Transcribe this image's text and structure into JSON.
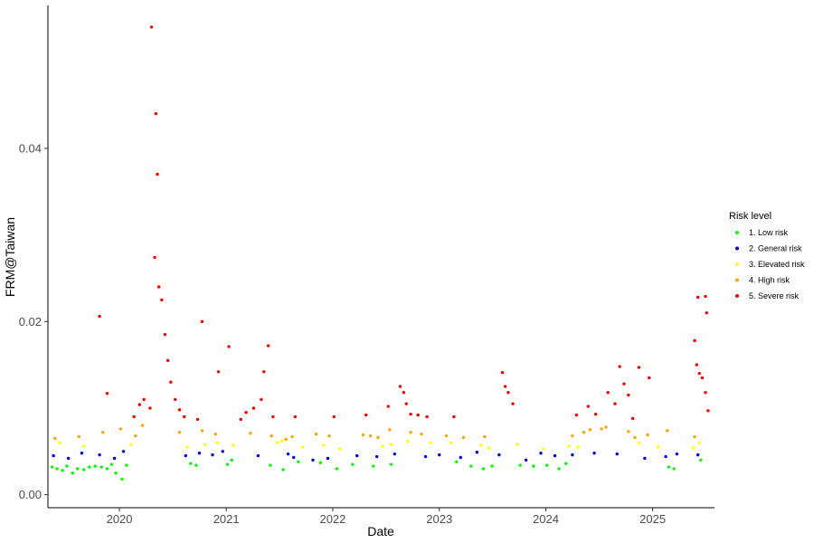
{
  "chart_data": {
    "type": "scatter",
    "xlabel": "Date",
    "ylabel": "FRM@Taiwan",
    "xlim": [
      "2019-05-01",
      "2025-08-01"
    ],
    "ylim": [
      -0.0015,
      0.0565
    ],
    "x_ticks": [
      "2020",
      "2021",
      "2022",
      "2023",
      "2024",
      "2025"
    ],
    "y_ticks": [
      "0.00",
      "0.02",
      "0.04"
    ],
    "grid": false,
    "legend": {
      "title": "Risk level",
      "placement": "right",
      "entries": [
        {
          "label": "1. Low risk",
          "color": "#00ff00"
        },
        {
          "label": "2. General risk",
          "color": "#0000ff"
        },
        {
          "label": "3. Elevated risk",
          "color": "#ffff00"
        },
        {
          "label": "4. High risk",
          "color": "#ffa500"
        },
        {
          "label": "5. Severe risk",
          "color": "#ff0000"
        }
      ]
    },
    "series": [
      {
        "name": "1. Low risk",
        "color": "#00ff00",
        "points": [
          [
            "2019-05-15",
            0.0032
          ],
          [
            "2019-06-01",
            0.003
          ],
          [
            "2019-06-20",
            0.0028
          ],
          [
            "2019-07-05",
            0.0033
          ],
          [
            "2019-07-25",
            0.0025
          ],
          [
            "2019-08-10",
            0.003
          ],
          [
            "2019-09-01",
            0.0029
          ],
          [
            "2019-09-20",
            0.0032
          ],
          [
            "2019-10-10",
            0.0033
          ],
          [
            "2019-11-01",
            0.0032
          ],
          [
            "2019-11-20",
            0.003
          ],
          [
            "2019-12-05",
            0.0035
          ],
          [
            "2019-12-20",
            0.0025
          ],
          [
            "2020-01-10",
            0.0018
          ],
          [
            "2020-01-25",
            0.0034
          ],
          [
            "2020-09-01",
            0.0036
          ],
          [
            "2020-09-20",
            0.0034
          ],
          [
            "2021-01-05",
            0.0035
          ],
          [
            "2021-01-20",
            0.004
          ],
          [
            "2021-06-01",
            0.0034
          ],
          [
            "2021-07-15",
            0.0029
          ],
          [
            "2021-09-05",
            0.0038
          ],
          [
            "2021-11-20",
            0.0037
          ],
          [
            "2022-01-15",
            0.003
          ],
          [
            "2022-03-10",
            0.0035
          ],
          [
            "2022-05-20",
            0.0033
          ],
          [
            "2022-07-20",
            0.0035
          ],
          [
            "2023-03-01",
            0.0038
          ],
          [
            "2023-04-20",
            0.0033
          ],
          [
            "2023-06-01",
            0.003
          ],
          [
            "2023-07-01",
            0.0033
          ],
          [
            "2023-10-05",
            0.0034
          ],
          [
            "2023-11-20",
            0.0033
          ],
          [
            "2024-01-05",
            0.0034
          ],
          [
            "2024-02-15",
            0.003
          ],
          [
            "2024-03-10",
            0.0036
          ],
          [
            "2025-02-25",
            0.0032
          ],
          [
            "2025-03-15",
            0.003
          ],
          [
            "2025-06-15",
            0.004
          ]
        ]
      },
      {
        "name": "2. General risk",
        "color": "#0000ff",
        "points": [
          [
            "2019-05-20",
            0.0045
          ],
          [
            "2019-07-10",
            0.0042
          ],
          [
            "2019-08-25",
            0.0048
          ],
          [
            "2019-10-25",
            0.0046
          ],
          [
            "2019-12-15",
            0.0042
          ],
          [
            "2020-01-15",
            0.005
          ],
          [
            "2020-08-15",
            0.0045
          ],
          [
            "2020-10-01",
            0.0048
          ],
          [
            "2020-11-15",
            0.0046
          ],
          [
            "2020-12-20",
            0.005
          ],
          [
            "2021-04-20",
            0.0045
          ],
          [
            "2021-08-01",
            0.0047
          ],
          [
            "2021-08-20",
            0.0043
          ],
          [
            "2021-10-25",
            0.004
          ],
          [
            "2021-12-15",
            0.0042
          ],
          [
            "2022-03-25",
            0.0045
          ],
          [
            "2022-06-01",
            0.0044
          ],
          [
            "2022-08-01",
            0.0047
          ],
          [
            "2022-11-15",
            0.0044
          ],
          [
            "2023-01-01",
            0.0046
          ],
          [
            "2023-03-15",
            0.0043
          ],
          [
            "2023-05-10",
            0.0049
          ],
          [
            "2023-07-25",
            0.0046
          ],
          [
            "2023-10-25",
            0.004
          ],
          [
            "2023-12-15",
            0.0048
          ],
          [
            "2024-02-01",
            0.0045
          ],
          [
            "2024-04-01",
            0.0046
          ],
          [
            "2024-06-15",
            0.0048
          ],
          [
            "2024-09-01",
            0.0047
          ],
          [
            "2024-12-05",
            0.0042
          ],
          [
            "2025-02-15",
            0.0044
          ],
          [
            "2025-03-25",
            0.0047
          ],
          [
            "2025-06-05",
            0.0046
          ]
        ]
      },
      {
        "name": "3. Elevated risk",
        "color": "#ffff00",
        "points": [
          [
            "2019-06-10",
            0.006
          ],
          [
            "2019-09-01",
            0.0056
          ],
          [
            "2020-02-10",
            0.0058
          ],
          [
            "2020-08-20",
            0.0055
          ],
          [
            "2020-10-20",
            0.0058
          ],
          [
            "2020-12-01",
            0.006
          ],
          [
            "2021-01-25",
            0.0057
          ],
          [
            "2021-06-25",
            0.006
          ],
          [
            "2021-07-10",
            0.0062
          ],
          [
            "2021-09-20",
            0.0055
          ],
          [
            "2021-12-01",
            0.0057
          ],
          [
            "2022-01-25",
            0.0053
          ],
          [
            "2022-06-20",
            0.0056
          ],
          [
            "2022-07-20",
            0.0058
          ],
          [
            "2022-09-15",
            0.0062
          ],
          [
            "2022-12-01",
            0.006
          ],
          [
            "2023-02-10",
            0.006
          ],
          [
            "2023-05-25",
            0.0057
          ],
          [
            "2023-06-20",
            0.0054
          ],
          [
            "2023-09-25",
            0.0058
          ],
          [
            "2023-12-25",
            0.0053
          ],
          [
            "2024-03-20",
            0.0056
          ],
          [
            "2024-04-20",
            0.0055
          ],
          [
            "2024-11-15",
            0.006
          ],
          [
            "2025-01-20",
            0.0055
          ],
          [
            "2025-05-20",
            0.0054
          ],
          [
            "2025-06-10",
            0.006
          ]
        ]
      },
      {
        "name": "4. High risk",
        "color": "#ffa500",
        "points": [
          [
            "2019-05-25",
            0.0065
          ],
          [
            "2019-08-15",
            0.0067
          ],
          [
            "2019-11-05",
            0.0072
          ],
          [
            "2020-01-05",
            0.0076
          ],
          [
            "2020-02-25",
            0.0068
          ],
          [
            "2020-03-20",
            0.008
          ],
          [
            "2020-07-25",
            0.0072
          ],
          [
            "2020-10-10",
            0.0074
          ],
          [
            "2020-11-25",
            0.007
          ],
          [
            "2021-03-25",
            0.0071
          ],
          [
            "2021-06-05",
            0.0068
          ],
          [
            "2021-07-25",
            0.0064
          ],
          [
            "2021-08-15",
            0.0067
          ],
          [
            "2021-11-05",
            0.007
          ],
          [
            "2021-12-20",
            0.0068
          ],
          [
            "2022-04-15",
            0.0069
          ],
          [
            "2022-05-10",
            0.0068
          ],
          [
            "2022-06-05",
            0.0066
          ],
          [
            "2022-07-15",
            0.0075
          ],
          [
            "2022-09-25",
            0.0072
          ],
          [
            "2022-11-01",
            0.007
          ],
          [
            "2023-01-25",
            0.0068
          ],
          [
            "2023-03-25",
            0.0066
          ],
          [
            "2023-06-05",
            0.0067
          ],
          [
            "2024-04-01",
            0.0068
          ],
          [
            "2024-05-10",
            0.0072
          ],
          [
            "2024-06-01",
            0.0075
          ],
          [
            "2024-07-10",
            0.0076
          ],
          [
            "2024-07-25",
            0.0078
          ],
          [
            "2024-10-10",
            0.0073
          ],
          [
            "2024-11-01",
            0.0066
          ],
          [
            "2024-12-15",
            0.0069
          ],
          [
            "2025-02-20",
            0.0074
          ],
          [
            "2025-05-25",
            0.0067
          ]
        ]
      },
      {
        "name": "5. Severe risk",
        "color": "#ff0000",
        "points": [
          [
            "2019-10-25",
            0.0206
          ],
          [
            "2019-11-20",
            0.0117
          ],
          [
            "2020-02-20",
            0.009
          ],
          [
            "2020-03-10",
            0.0104
          ],
          [
            "2020-03-25",
            0.011
          ],
          [
            "2020-04-15",
            0.01
          ],
          [
            "2020-04-20",
            0.054
          ],
          [
            "2020-05-05",
            0.044
          ],
          [
            "2020-05-10",
            0.037
          ],
          [
            "2020-05-01",
            0.0274
          ],
          [
            "2020-05-15",
            0.024
          ],
          [
            "2020-05-25",
            0.0225
          ],
          [
            "2020-06-05",
            0.0185
          ],
          [
            "2020-06-15",
            0.0155
          ],
          [
            "2020-06-25",
            0.013
          ],
          [
            "2020-07-10",
            0.011
          ],
          [
            "2020-07-25",
            0.0098
          ],
          [
            "2020-08-10",
            0.009
          ],
          [
            "2020-09-25",
            0.0087
          ],
          [
            "2020-10-10",
            0.02
          ],
          [
            "2020-12-05",
            0.0142
          ],
          [
            "2021-01-10",
            0.0171
          ],
          [
            "2021-02-20",
            0.0087
          ],
          [
            "2021-03-10",
            0.0095
          ],
          [
            "2021-04-05",
            0.01
          ],
          [
            "2021-05-01",
            0.011
          ],
          [
            "2021-05-10",
            0.0142
          ],
          [
            "2021-05-25",
            0.0172
          ],
          [
            "2021-06-10",
            0.009
          ],
          [
            "2021-08-25",
            0.009
          ],
          [
            "2022-01-05",
            0.009
          ],
          [
            "2022-04-25",
            0.0092
          ],
          [
            "2022-07-10",
            0.0102
          ],
          [
            "2022-08-20",
            0.0125
          ],
          [
            "2022-09-01",
            0.0118
          ],
          [
            "2022-09-10",
            0.0105
          ],
          [
            "2022-09-25",
            0.0093
          ],
          [
            "2022-10-20",
            0.0092
          ],
          [
            "2022-11-20",
            0.009
          ],
          [
            "2023-02-20",
            0.009
          ],
          [
            "2023-08-05",
            0.0141
          ],
          [
            "2023-08-15",
            0.0125
          ],
          [
            "2023-08-25",
            0.0118
          ],
          [
            "2023-09-10",
            0.0105
          ],
          [
            "2024-04-15",
            0.0092
          ],
          [
            "2024-05-25",
            0.0102
          ],
          [
            "2024-06-20",
            0.0093
          ],
          [
            "2024-08-01",
            0.0118
          ],
          [
            "2024-08-25",
            0.0105
          ],
          [
            "2024-09-10",
            0.0148
          ],
          [
            "2024-09-25",
            0.0128
          ],
          [
            "2024-10-10",
            0.0115
          ],
          [
            "2024-10-25",
            0.0088
          ],
          [
            "2024-11-15",
            0.0147
          ],
          [
            "2024-12-20",
            0.0135
          ],
          [
            "2025-05-25",
            0.0178
          ],
          [
            "2025-06-01",
            0.015
          ],
          [
            "2025-06-10",
            0.014
          ],
          [
            "2025-06-20",
            0.0135
          ],
          [
            "2025-06-05",
            0.0228
          ],
          [
            "2025-07-01",
            0.0229
          ],
          [
            "2025-07-05",
            0.021
          ],
          [
            "2025-07-01",
            0.0118
          ],
          [
            "2025-07-10",
            0.0097
          ]
        ]
      }
    ]
  }
}
